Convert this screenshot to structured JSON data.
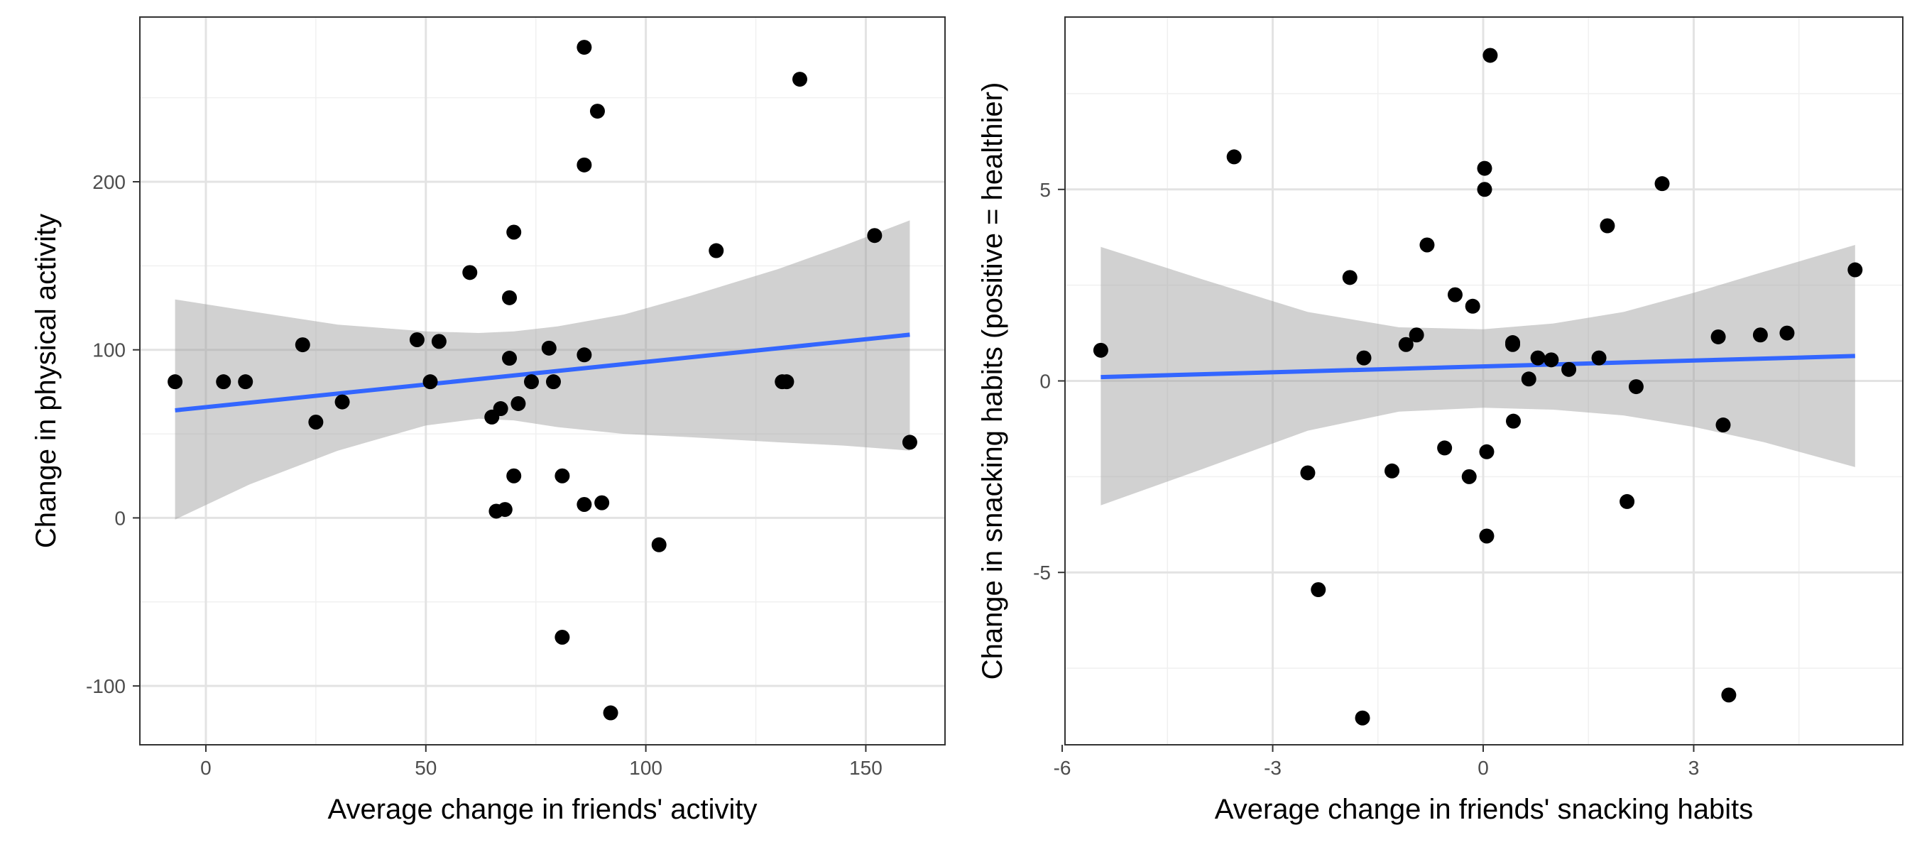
{
  "chart_data": [
    {
      "type": "scatter",
      "title": "",
      "xlabel": "Average change in friends' activity",
      "ylabel": "Change in physical activity",
      "xlim": [
        -15,
        168
      ],
      "ylim": [
        -135,
        298
      ],
      "xticks": [
        0,
        50,
        100,
        150
      ],
      "xtick_labels": [
        "0",
        "50",
        "100",
        "150"
      ],
      "yticks": [
        -100,
        0,
        100,
        200
      ],
      "ytick_labels": [
        "-100",
        "0",
        "100",
        "200"
      ],
      "grid": true,
      "trend": {
        "x": [
          -7,
          160
        ],
        "fit": [
          64,
          109
        ],
        "band_x": [
          -7,
          10,
          30,
          50,
          62,
          70,
          80,
          95,
          110,
          130,
          145,
          160
        ],
        "band_lo": [
          -1,
          20,
          40,
          55,
          59,
          58,
          54,
          50,
          48,
          45,
          43,
          40
        ],
        "band_hi": [
          130,
          123,
          115,
          111,
          110,
          111,
          114,
          121,
          132,
          148,
          162,
          177
        ]
      },
      "points": [
        {
          "x": -7,
          "y": 81
        },
        {
          "x": 4,
          "y": 81
        },
        {
          "x": 9,
          "y": 81
        },
        {
          "x": 22,
          "y": 103
        },
        {
          "x": 25,
          "y": 57
        },
        {
          "x": 31,
          "y": 69
        },
        {
          "x": 48,
          "y": 106
        },
        {
          "x": 51,
          "y": 81
        },
        {
          "x": 53,
          "y": 105
        },
        {
          "x": 60,
          "y": 146
        },
        {
          "x": 65,
          "y": 60
        },
        {
          "x": 66,
          "y": 4
        },
        {
          "x": 67,
          "y": 65
        },
        {
          "x": 68,
          "y": 5
        },
        {
          "x": 69,
          "y": 131
        },
        {
          "x": 69,
          "y": 95
        },
        {
          "x": 70,
          "y": 170
        },
        {
          "x": 70,
          "y": 25
        },
        {
          "x": 71,
          "y": 68
        },
        {
          "x": 74,
          "y": 81
        },
        {
          "x": 78,
          "y": 101
        },
        {
          "x": 79,
          "y": 81
        },
        {
          "x": 81,
          "y": -71
        },
        {
          "x": 81,
          "y": 25
        },
        {
          "x": 86,
          "y": 280
        },
        {
          "x": 86,
          "y": 210
        },
        {
          "x": 86,
          "y": 97
        },
        {
          "x": 86,
          "y": 8
        },
        {
          "x": 89,
          "y": 242
        },
        {
          "x": 90,
          "y": 9
        },
        {
          "x": 92,
          "y": -116
        },
        {
          "x": 103,
          "y": -16
        },
        {
          "x": 116,
          "y": 159
        },
        {
          "x": 131,
          "y": 81
        },
        {
          "x": 132,
          "y": 81
        },
        {
          "x": 135,
          "y": 261
        },
        {
          "x": 152,
          "y": 168
        },
        {
          "x": 160,
          "y": 45
        }
      ]
    },
    {
      "type": "scatter",
      "title": "",
      "xlabel": "Average change in friends' snacking habits",
      "ylabel": "Change in snacking habits (positive = healthier)",
      "xlim": [
        -5.96,
        5.98
      ],
      "ylim": [
        -9.5,
        9.5
      ],
      "xticks": [
        -6,
        -3,
        0,
        3
      ],
      "xtick_labels": [
        "-6",
        "-3",
        "0",
        "3"
      ],
      "yticks": [
        -5,
        0,
        5
      ],
      "ytick_labels": [
        "-5",
        "0",
        "5"
      ],
      "grid": true,
      "trend": {
        "x": [
          -5.45,
          5.3
        ],
        "fit": [
          0.1,
          0.65
        ],
        "band_x": [
          -5.45,
          -4,
          -2.5,
          -1.2,
          0,
          1,
          2,
          3,
          4,
          5.3
        ],
        "band_lo": [
          -3.25,
          -2.3,
          -1.3,
          -0.8,
          -0.7,
          -0.75,
          -0.9,
          -1.2,
          -1.6,
          -2.25
        ],
        "band_hi": [
          3.5,
          2.65,
          1.8,
          1.4,
          1.35,
          1.5,
          1.8,
          2.3,
          2.85,
          3.55
        ]
      },
      "points": [
        {
          "x": -5.45,
          "y": 0.8
        },
        {
          "x": -3.55,
          "y": 5.85
        },
        {
          "x": -2.5,
          "y": -2.4
        },
        {
          "x": -2.35,
          "y": -5.45
        },
        {
          "x": -1.9,
          "y": 2.7
        },
        {
          "x": -1.7,
          "y": 0.6
        },
        {
          "x": -1.72,
          "y": -8.8
        },
        {
          "x": -1.3,
          "y": -2.35
        },
        {
          "x": -1.1,
          "y": 0.95
        },
        {
          "x": -0.95,
          "y": 1.2
        },
        {
          "x": -0.8,
          "y": 3.55
        },
        {
          "x": -0.55,
          "y": -1.75
        },
        {
          "x": -0.4,
          "y": 2.25
        },
        {
          "x": -0.2,
          "y": -2.5
        },
        {
          "x": -0.15,
          "y": 1.95
        },
        {
          "x": 0.02,
          "y": 5.55
        },
        {
          "x": 0.02,
          "y": 5.0
        },
        {
          "x": 0.05,
          "y": -1.85
        },
        {
          "x": 0.05,
          "y": -4.05
        },
        {
          "x": 0.1,
          "y": 8.5
        },
        {
          "x": 0.42,
          "y": 1.0
        },
        {
          "x": 0.42,
          "y": 0.95
        },
        {
          "x": 0.43,
          "y": -1.05
        },
        {
          "x": 0.65,
          "y": 0.05
        },
        {
          "x": 0.78,
          "y": 0.6
        },
        {
          "x": 0.97,
          "y": 0.55
        },
        {
          "x": 1.22,
          "y": 0.3
        },
        {
          "x": 1.65,
          "y": 0.6
        },
        {
          "x": 1.77,
          "y": 4.05
        },
        {
          "x": 2.05,
          "y": -3.15
        },
        {
          "x": 2.18,
          "y": -0.15
        },
        {
          "x": 2.55,
          "y": 5.15
        },
        {
          "x": 3.35,
          "y": 1.15
        },
        {
          "x": 3.42,
          "y": -1.15
        },
        {
          "x": 3.5,
          "y": -8.2
        },
        {
          "x": 3.95,
          "y": 1.2
        },
        {
          "x": 4.33,
          "y": 1.25
        },
        {
          "x": 5.3,
          "y": 2.9
        }
      ]
    }
  ],
  "colors": {
    "trend_line": "#3366ff",
    "band": "#999999",
    "points": "#000000",
    "grid_major": "#e3e3e3",
    "grid_minor": "#f0f0f0",
    "panel_border": "#333333"
  }
}
